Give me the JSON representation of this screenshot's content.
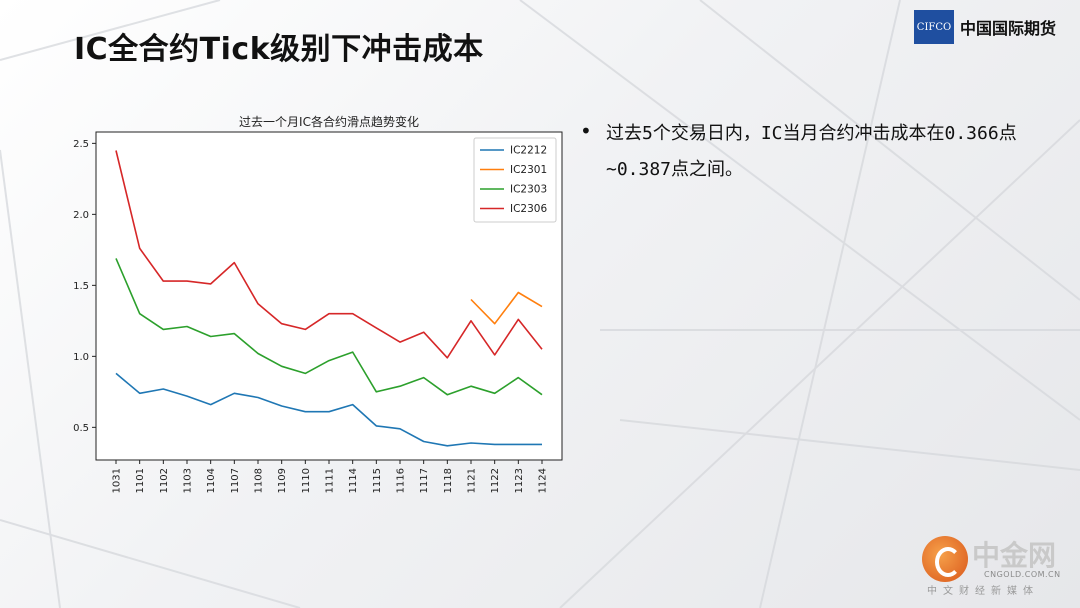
{
  "slide": {
    "title": "IC全合约Tick级别下冲击成本"
  },
  "logo": {
    "mark": "CIFCO",
    "name": "中国国际期货"
  },
  "bullets": [
    "过去5个交易日内，IC当月合约冲击成本在0.366点~0.387点之间。"
  ],
  "watermark": {
    "name": "中金网",
    "url": "CNGOLD.COM.CN",
    "sub": "中文财经新媒体"
  },
  "chart_data": {
    "type": "line",
    "title": "过去一个月IC各合约滑点趋势变化",
    "categories": [
      "1031",
      "1101",
      "1102",
      "1103",
      "1104",
      "1107",
      "1108",
      "1109",
      "1110",
      "1111",
      "1114",
      "1115",
      "1116",
      "1117",
      "1118",
      "1121",
      "1122",
      "1123",
      "1124"
    ],
    "ylim": [
      0.27,
      2.58
    ],
    "yticks": [
      "0.5",
      "1.0",
      "1.5",
      "2.0",
      "2.5"
    ],
    "legend_position": "top-right",
    "grid": false,
    "series": [
      {
        "name": "IC2212",
        "color": "#1f77b4",
        "values": [
          0.88,
          0.74,
          0.77,
          0.72,
          0.66,
          0.74,
          0.71,
          0.65,
          0.61,
          0.61,
          0.66,
          0.51,
          0.49,
          0.4,
          0.37,
          0.39,
          0.38,
          0.38,
          0.38
        ]
      },
      {
        "name": "IC2301",
        "color": "#ff7f0e",
        "values": [
          null,
          null,
          null,
          null,
          null,
          null,
          null,
          null,
          null,
          null,
          null,
          null,
          null,
          null,
          null,
          1.4,
          1.23,
          1.45,
          1.35
        ]
      },
      {
        "name": "IC2303",
        "color": "#2ca02c",
        "values": [
          1.69,
          1.3,
          1.19,
          1.21,
          1.14,
          1.16,
          1.02,
          0.93,
          0.88,
          0.97,
          1.03,
          0.75,
          0.79,
          0.85,
          0.73,
          0.79,
          0.74,
          0.85,
          0.73
        ]
      },
      {
        "name": "IC2306",
        "color": "#d62728",
        "values": [
          2.45,
          1.76,
          1.53,
          1.53,
          1.51,
          1.66,
          1.37,
          1.23,
          1.19,
          1.3,
          1.3,
          1.2,
          1.1,
          1.17,
          0.99,
          1.25,
          1.01,
          1.26,
          1.05
        ]
      }
    ]
  }
}
